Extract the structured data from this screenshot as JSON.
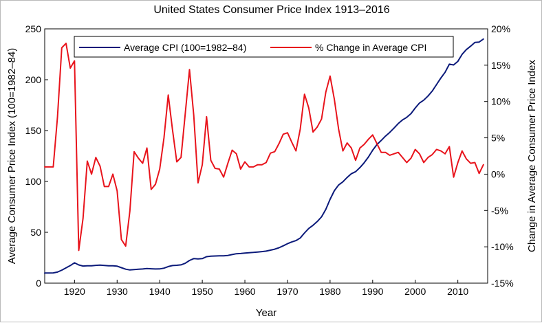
{
  "chart_data": {
    "type": "line",
    "title": "United States Consumer Price Index 1913–2016",
    "xlabel": "Year",
    "ylabel_left": "Average Consumer Price Index (100=1982–84)",
    "ylabel_right": "Change in Average Consumer Price Index",
    "xlim": [
      1913,
      2017
    ],
    "ylim_left": [
      0,
      250
    ],
    "ylim_right": [
      -15,
      20
    ],
    "x_ticks": [
      1920,
      1930,
      1940,
      1950,
      1960,
      1970,
      1980,
      1990,
      2000,
      2010
    ],
    "x_tick_labels": [
      "1920",
      "1930",
      "1940",
      "1950",
      "1960",
      "1970",
      "1980",
      "1990",
      "2000",
      "2010"
    ],
    "y_left_ticks": [
      0,
      50,
      100,
      150,
      200,
      250
    ],
    "y_left_tick_labels": [
      "0",
      "50",
      "100",
      "150",
      "200",
      "250"
    ],
    "y_right_ticks": [
      -15,
      -10,
      -5,
      0,
      5,
      10,
      15,
      20
    ],
    "y_right_tick_labels": [
      "-15%",
      "-10%",
      "-5%",
      "0%",
      "5%",
      "10%",
      "15%",
      "20%"
    ],
    "grid": false,
    "legend_position": "top",
    "x": [
      1913,
      1914,
      1915,
      1916,
      1917,
      1918,
      1919,
      1920,
      1921,
      1922,
      1923,
      1924,
      1925,
      1926,
      1927,
      1928,
      1929,
      1930,
      1931,
      1932,
      1933,
      1934,
      1935,
      1936,
      1937,
      1938,
      1939,
      1940,
      1941,
      1942,
      1943,
      1944,
      1945,
      1946,
      1947,
      1948,
      1949,
      1950,
      1951,
      1952,
      1953,
      1954,
      1955,
      1956,
      1957,
      1958,
      1959,
      1960,
      1961,
      1962,
      1963,
      1964,
      1965,
      1966,
      1967,
      1968,
      1969,
      1970,
      1971,
      1972,
      1973,
      1974,
      1975,
      1976,
      1977,
      1978,
      1979,
      1980,
      1981,
      1982,
      1983,
      1984,
      1985,
      1986,
      1987,
      1988,
      1989,
      1990,
      1991,
      1992,
      1993,
      1994,
      1995,
      1996,
      1997,
      1998,
      1999,
      2000,
      2001,
      2002,
      2003,
      2004,
      2005,
      2006,
      2007,
      2008,
      2009,
      2010,
      2011,
      2012,
      2013,
      2014,
      2015,
      2016
    ],
    "series": [
      {
        "name": "Average CPI (100=1982–84)",
        "axis": "left",
        "color": "#0b1a7a",
        "values": [
          9.9,
          10.0,
          10.1,
          10.9,
          12.8,
          15.1,
          17.3,
          20.0,
          17.9,
          16.8,
          17.1,
          17.1,
          17.5,
          17.7,
          17.4,
          17.1,
          17.1,
          16.7,
          15.2,
          13.7,
          13.0,
          13.4,
          13.7,
          13.9,
          14.4,
          14.1,
          13.9,
          14.0,
          14.7,
          16.3,
          17.3,
          17.6,
          18.0,
          19.5,
          22.3,
          24.1,
          23.8,
          24.1,
          26.0,
          26.5,
          26.7,
          26.9,
          26.8,
          27.2,
          28.1,
          28.9,
          29.1,
          29.6,
          29.9,
          30.2,
          30.6,
          31.0,
          31.5,
          32.4,
          33.4,
          34.8,
          36.7,
          38.8,
          40.5,
          41.8,
          44.4,
          49.3,
          53.8,
          56.9,
          60.6,
          65.2,
          72.6,
          82.4,
          90.9,
          96.5,
          99.6,
          103.9,
          107.6,
          109.6,
          113.6,
          118.3,
          124.0,
          130.7,
          136.2,
          140.3,
          144.5,
          148.2,
          152.4,
          156.9,
          160.5,
          163.0,
          166.6,
          172.2,
          177.1,
          179.9,
          184.0,
          188.9,
          195.3,
          201.6,
          207.3,
          215.3,
          214.5,
          218.1,
          224.9,
          229.6,
          233.0,
          236.7,
          237.0,
          240.0
        ]
      },
      {
        "name": "% Change in Average CPI",
        "axis": "right",
        "color": "#e8141c",
        "values": [
          1.0,
          1.0,
          1.0,
          7.9,
          17.4,
          18.0,
          14.6,
          15.6,
          -10.5,
          -6.1,
          1.8,
          0.0,
          2.3,
          1.1,
          -1.7,
          -1.7,
          0.0,
          -2.3,
          -9.0,
          -9.9,
          -5.1,
          3.1,
          2.2,
          1.5,
          3.6,
          -2.1,
          -1.4,
          0.7,
          5.0,
          10.9,
          6.1,
          1.7,
          2.3,
          8.3,
          14.4,
          8.1,
          -1.2,
          1.3,
          7.9,
          1.9,
          0.8,
          0.7,
          -0.4,
          1.5,
          3.3,
          2.8,
          0.7,
          1.7,
          1.0,
          1.0,
          1.3,
          1.3,
          1.6,
          2.9,
          3.1,
          4.2,
          5.5,
          5.7,
          4.4,
          3.2,
          6.2,
          11.0,
          9.1,
          5.8,
          6.5,
          7.6,
          11.3,
          13.5,
          10.3,
          6.2,
          3.2,
          4.3,
          3.6,
          1.9,
          3.6,
          4.1,
          4.8,
          5.4,
          4.2,
          3.0,
          3.0,
          2.6,
          2.8,
          3.0,
          2.3,
          1.6,
          2.2,
          3.4,
          2.8,
          1.6,
          2.3,
          2.7,
          3.4,
          3.2,
          2.8,
          3.8,
          -0.4,
          1.6,
          3.2,
          2.1,
          1.5,
          1.6,
          0.1,
          1.3
        ]
      }
    ]
  }
}
